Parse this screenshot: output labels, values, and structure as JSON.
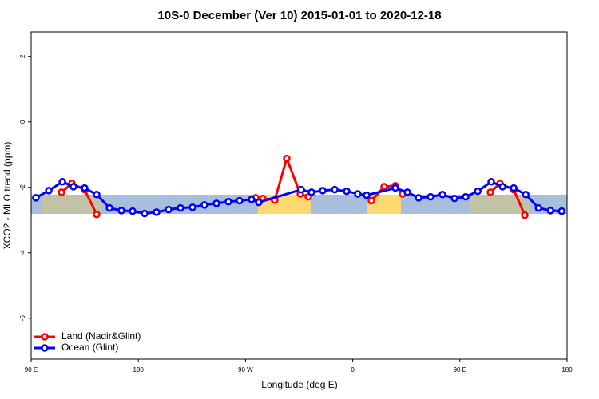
{
  "chart_data": {
    "type": "line",
    "title": "10S-0 December (Ver 10)   2015-01-01 to 2020-12-18",
    "xlabel": "Longitude (deg E)",
    "ylabel": "XCO2 - MLO trend (ppm)",
    "xlim": [
      90,
      540
    ],
    "xticks": [
      {
        "value": 90,
        "label": "90 E"
      },
      180,
      {
        "value": 270,
        "label": "90 W"
      },
      {
        "value": 360,
        "label": "0"
      },
      {
        "value": 450,
        "label": "90 E"
      },
      {
        "value": 540,
        "label": "180"
      }
    ],
    "ylim": [
      -7.25,
      2.75
    ],
    "yticks": [
      2,
      0,
      -2,
      -4,
      -6
    ],
    "legend": "bottom-left",
    "series": [
      {
        "name": "Land (Nadir&Glint)",
        "color": "#ff0000",
        "x": [
          115.5,
          124.2,
          134.9,
          145,
          null,
          278.5,
          284.5,
          294.5,
          304.6,
          316,
          322.7,
          null,
          375.7,
          386.4,
          395.8,
          401.9,
          null,
          475.6,
          483.7,
          495.2,
          504.5
        ],
        "values": [
          -2.15,
          -1.88,
          -2.07,
          -2.83,
          null,
          -2.32,
          -2.34,
          -2.39,
          -1.12,
          -2.2,
          -2.29,
          null,
          -2.41,
          -1.98,
          -1.95,
          -2.2,
          null,
          -2.15,
          -1.88,
          -2.07,
          -2.85
        ]
      },
      {
        "name": "Ocean (Glint)",
        "color": "#0000ff",
        "x": [
          94,
          104.8,
          116.2,
          125.5,
          134.9,
          145,
          155.8,
          165.8,
          175.2,
          185.3,
          195.3,
          205.4,
          215.4,
          225.5,
          235.5,
          245.6,
          255.6,
          265,
          275.1,
          281.1,
          316.7,
          325.4,
          334.8,
          344.9,
          354.9,
          364.3,
          371.7,
          395.8,
          405.9,
          415.3,
          425.4,
          435.4,
          445.5,
          454.9,
          465,
          476.3,
          485.8,
          495.2,
          505.3,
          516,
          526.1,
          535.5
        ],
        "values": [
          -2.32,
          -2.1,
          -1.83,
          -1.98,
          -2.02,
          -2.22,
          -2.63,
          -2.71,
          -2.73,
          -2.8,
          -2.76,
          -2.68,
          -2.63,
          -2.61,
          -2.54,
          -2.49,
          -2.44,
          -2.41,
          -2.37,
          -2.46,
          -2.07,
          -2.15,
          -2.1,
          -2.07,
          -2.12,
          -2.2,
          -2.24,
          -2.02,
          -2.15,
          -2.32,
          -2.29,
          -2.22,
          -2.34,
          -2.29,
          -2.12,
          -1.83,
          -1.98,
          -2.02,
          -2.22,
          -2.63,
          -2.71,
          -2.73
        ]
      }
    ]
  }
}
